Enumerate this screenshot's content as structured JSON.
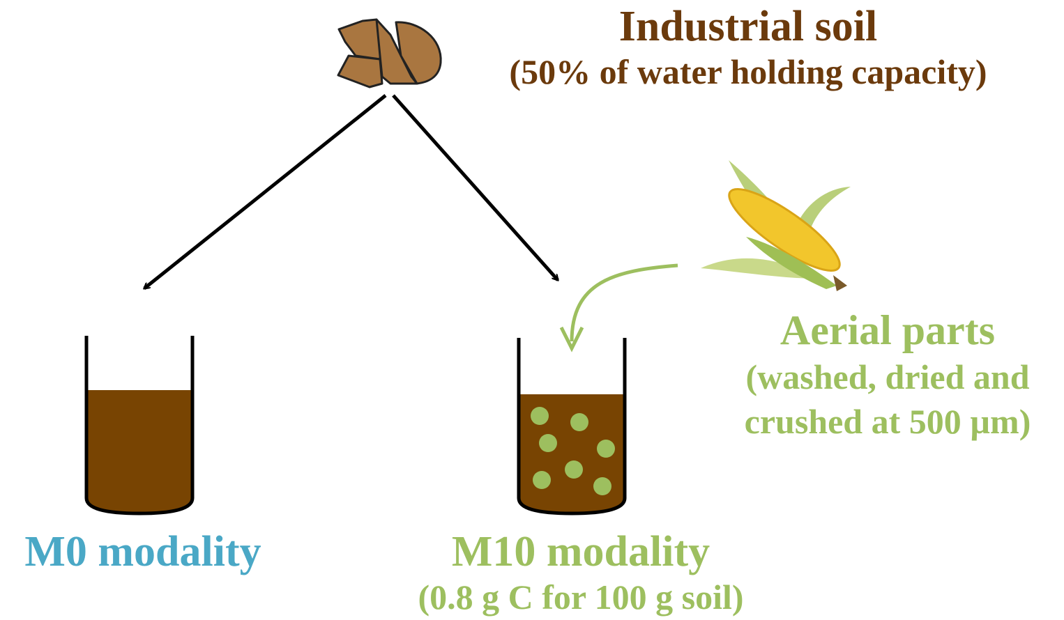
{
  "soil": {
    "title": "Industrial soil",
    "subtitle": "(50% of water holding capacity)"
  },
  "amendment": {
    "title": "Aerial parts",
    "lines": [
      "(washed, dried and",
      "crushed at 500 µm)"
    ]
  },
  "modalities": [
    {
      "label": "M0 modality"
    },
    {
      "label": "M10 modality",
      "subtitle": "(0.8 g C for 100 g soil)"
    }
  ]
}
